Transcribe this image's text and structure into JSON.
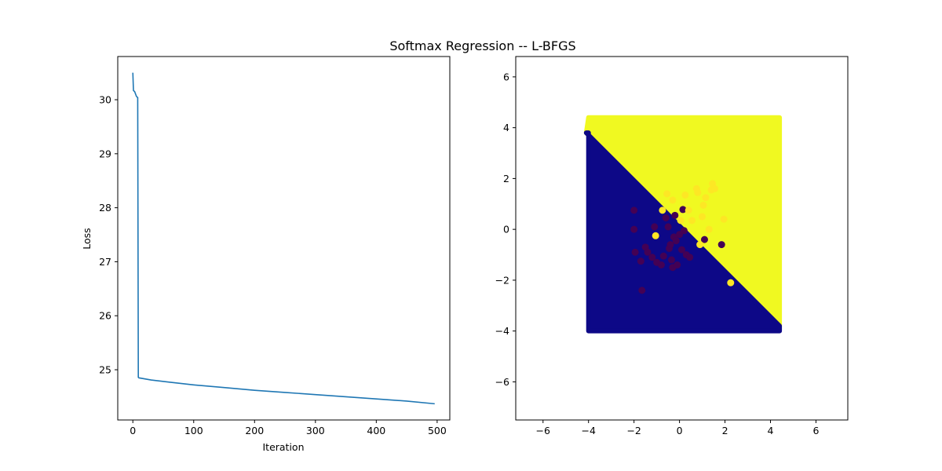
{
  "figure": {
    "title": "Softmax Regression -- L-BFGS"
  },
  "colors": {
    "loss_line": "#1f77b4",
    "class0_region": "#0d0887",
    "class1_region": "#f0f921",
    "class0_point": "#440154",
    "class1_point": "#fde725"
  },
  "chart_data": [
    {
      "type": "line",
      "xlabel": "Iteration",
      "ylabel": "Loss",
      "xlim": [
        -24.8,
        520.8
      ],
      "ylim": [
        24.07,
        30.8
      ],
      "xticks": [
        0,
        100,
        200,
        300,
        400,
        500
      ],
      "xtick_labels": [
        "0",
        "100",
        "200",
        "300",
        "400",
        "500"
      ],
      "yticks": [
        25,
        26,
        27,
        28,
        29,
        30
      ],
      "ytick_labels": [
        "25",
        "26",
        "27",
        "28",
        "29",
        "30"
      ],
      "grid": false,
      "series": [
        {
          "x": [
            0,
            1,
            2,
            3,
            4,
            5,
            6,
            7,
            8,
            9,
            10,
            30,
            60,
            100,
            150,
            200,
            250,
            300,
            350,
            400,
            450,
            496
          ],
          "y": [
            30.5,
            30.17,
            30.16,
            30.15,
            30.12,
            30.09,
            30.06,
            30.05,
            30.04,
            24.86,
            24.85,
            24.81,
            24.77,
            24.72,
            24.67,
            24.62,
            24.58,
            24.54,
            24.5,
            24.46,
            24.42,
            24.37
          ]
        }
      ]
    },
    {
      "type": "scatter",
      "xlim": [
        -7.2,
        7.4
      ],
      "ylim": [
        -7.5,
        6.8
      ],
      "xticks": [
        -6,
        -4,
        -2,
        0,
        2,
        4,
        6
      ],
      "xtick_labels": [
        "−6",
        "−4",
        "−2",
        "0",
        "2",
        "4",
        "6"
      ],
      "yticks": [
        -6,
        -4,
        -2,
        0,
        2,
        4,
        6
      ],
      "ytick_labels": [
        "−6",
        "−4",
        "−2",
        "0",
        "2",
        "4",
        "6"
      ],
      "grid": false,
      "decision_region": {
        "x_range": [
          -4.0,
          4.4
        ],
        "y_range": [
          -4.0,
          4.4
        ],
        "boundary": {
          "x_at_y_top": -4.1,
          "y_top": 3.8,
          "x_at_y_bottom": 4.4,
          "y_bottom": -3.8
        },
        "class0": "below boundary",
        "class1": "above boundary"
      },
      "points": [
        {
          "class": 0,
          "x": -2.0,
          "y": 0.75
        },
        {
          "class": 0,
          "x": -2.0,
          "y": 0.0
        },
        {
          "class": 0,
          "x": -1.95,
          "y": -0.9
        },
        {
          "class": 0,
          "x": -1.7,
          "y": -1.25
        },
        {
          "class": 0,
          "x": -1.5,
          "y": -0.7
        },
        {
          "class": 0,
          "x": -1.4,
          "y": -0.9
        },
        {
          "class": 0,
          "x": -1.2,
          "y": -1.1
        },
        {
          "class": 0,
          "x": -1.1,
          "y": 0.1
        },
        {
          "class": 0,
          "x": -1.0,
          "y": -1.3
        },
        {
          "class": 0,
          "x": -0.8,
          "y": -1.4
        },
        {
          "class": 0,
          "x": -0.7,
          "y": -1.05
        },
        {
          "class": 0,
          "x": -0.6,
          "y": 0.45
        },
        {
          "class": 0,
          "x": -0.5,
          "y": 0.1
        },
        {
          "class": 0,
          "x": -0.45,
          "y": -0.75
        },
        {
          "class": 0,
          "x": -0.4,
          "y": -0.6
        },
        {
          "class": 0,
          "x": -0.35,
          "y": -1.2
        },
        {
          "class": 0,
          "x": -0.3,
          "y": -1.5
        },
        {
          "class": 0,
          "x": -0.25,
          "y": -0.3
        },
        {
          "class": 0,
          "x": -0.2,
          "y": 0.55
        },
        {
          "class": 0,
          "x": -0.15,
          "y": -0.45
        },
        {
          "class": 0,
          "x": -0.1,
          "y": -1.4
        },
        {
          "class": 0,
          "x": 0.0,
          "y": -0.2
        },
        {
          "class": 0,
          "x": 0.1,
          "y": -0.8
        },
        {
          "class": 0,
          "x": 0.15,
          "y": 0.78
        },
        {
          "class": 0,
          "x": 0.2,
          "y": -0.05
        },
        {
          "class": 0,
          "x": 0.3,
          "y": -1.0
        },
        {
          "class": 0,
          "x": 0.45,
          "y": -1.1
        },
        {
          "class": 0,
          "x": 1.1,
          "y": -0.4
        },
        {
          "class": 0,
          "x": 1.85,
          "y": -0.6
        },
        {
          "class": 0,
          "x": -1.65,
          "y": -2.4
        },
        {
          "class": 1,
          "x": -1.05,
          "y": -0.25
        },
        {
          "class": 1,
          "x": -0.75,
          "y": 0.75
        },
        {
          "class": 1,
          "x": -0.55,
          "y": 1.4
        },
        {
          "class": 1,
          "x": -0.3,
          "y": 1.15
        },
        {
          "class": 1,
          "x": 0.05,
          "y": 0.35
        },
        {
          "class": 1,
          "x": 0.25,
          "y": 1.35
        },
        {
          "class": 1,
          "x": 0.4,
          "y": 0.75
        },
        {
          "class": 1,
          "x": 0.55,
          "y": 0.35
        },
        {
          "class": 1,
          "x": 0.75,
          "y": 1.6
        },
        {
          "class": 1,
          "x": 0.8,
          "y": 1.45
        },
        {
          "class": 1,
          "x": 0.9,
          "y": -0.6
        },
        {
          "class": 1,
          "x": 1.0,
          "y": 0.5
        },
        {
          "class": 1,
          "x": 1.05,
          "y": 0.95
        },
        {
          "class": 1,
          "x": 1.15,
          "y": 1.25
        },
        {
          "class": 1,
          "x": 1.3,
          "y": 0.0
        },
        {
          "class": 1,
          "x": 1.4,
          "y": 1.55
        },
        {
          "class": 1,
          "x": 1.45,
          "y": 1.8
        },
        {
          "class": 1,
          "x": 1.55,
          "y": 1.6
        },
        {
          "class": 1,
          "x": 1.95,
          "y": 0.4
        },
        {
          "class": 1,
          "x": 2.25,
          "y": -2.1
        }
      ]
    }
  ]
}
